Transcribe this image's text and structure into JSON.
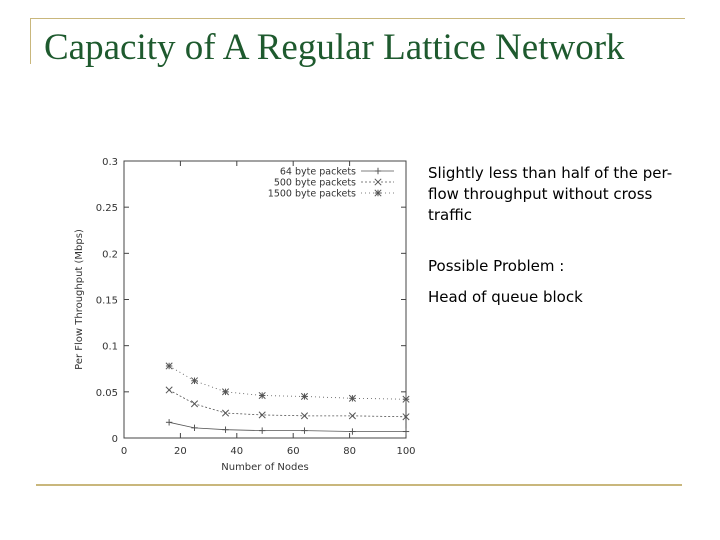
{
  "slide": {
    "title": "Capacity of A Regular Lattice Network",
    "notes": [
      "Slightly less than half of the per-flow throughput without cross traffic",
      "Possible Problem :",
      "Head of queue block"
    ]
  },
  "colors": {
    "title": "#1e5a2e",
    "rule": "#c9b77c",
    "plot": "#555555"
  },
  "chart_data": {
    "type": "line",
    "xlabel": "Number of Nodes",
    "ylabel": "Per Flow Throughput (Mbps)",
    "xlim": [
      0,
      100
    ],
    "ylim": [
      0,
      0.3
    ],
    "xticks": [
      "0",
      "20",
      "40",
      "60",
      "80",
      "100"
    ],
    "yticks": [
      "0",
      "0.05",
      "0.1",
      "0.15",
      "0.2",
      "0.25",
      "0.3"
    ],
    "legend_position": "top-right",
    "series": [
      {
        "name": "64 byte packets",
        "marker": "+",
        "x": [
          16,
          25,
          36,
          49,
          64,
          81,
          100
        ],
        "values": [
          0.017,
          0.011,
          0.009,
          0.008,
          0.008,
          0.007,
          0.007
        ]
      },
      {
        "name": "500 byte packets",
        "marker": "x",
        "x": [
          16,
          25,
          36,
          49,
          64,
          81,
          100
        ],
        "values": [
          0.052,
          0.037,
          0.027,
          0.025,
          0.024,
          0.024,
          0.023
        ]
      },
      {
        "name": "1500 byte packets",
        "marker": "*",
        "x": [
          16,
          25,
          36,
          49,
          64,
          81,
          100
        ],
        "values": [
          0.078,
          0.062,
          0.05,
          0.046,
          0.045,
          0.043,
          0.042
        ]
      }
    ]
  }
}
